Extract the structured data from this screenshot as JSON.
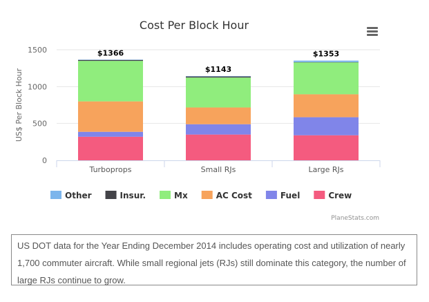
{
  "chart_data": {
    "type": "bar",
    "stacked": true,
    "title": "Cost Per Block Hour",
    "xlabel": "",
    "ylabel": "US$ Per Block Hour",
    "ylim": [
      0,
      1500
    ],
    "yticks": [
      0,
      500,
      1000,
      1500
    ],
    "grid": true,
    "categories": [
      "Turboprops",
      "Small RJs",
      "Large RJs"
    ],
    "totals_labels": [
      "$1366",
      "$1143",
      "$1353"
    ],
    "series": [
      {
        "name": "Crew",
        "color": "#f45b7f",
        "values": [
          320,
          350,
          340
        ]
      },
      {
        "name": "Fuel",
        "color": "#8085e9",
        "values": [
          67,
          140,
          245
        ]
      },
      {
        "name": "AC Cost",
        "color": "#f7a35c",
        "values": [
          413,
          227,
          311
        ]
      },
      {
        "name": "Mx",
        "color": "#90ed7d",
        "values": [
          549,
          406,
          434
        ]
      },
      {
        "name": "Insur.",
        "color": "#434348",
        "values": [
          14,
          15,
          3
        ]
      },
      {
        "name": "Other",
        "color": "#7cb5ec",
        "values": [
          3,
          5,
          20
        ]
      }
    ],
    "legend_order": [
      "Other",
      "Insur.",
      "Mx",
      "AC Cost",
      "Fuel",
      "Crew"
    ],
    "legend_placement": "bottom"
  },
  "menu_icon": "hamburger-menu-icon",
  "credit": "PlaneStats.com",
  "description": "US DOT data for the Year Ending December 2014 includes operating cost and utilization of nearly 1,700 commuter aircraft. While small regional jets (RJs) still dominate this category, the number of large RJs continue to grow."
}
